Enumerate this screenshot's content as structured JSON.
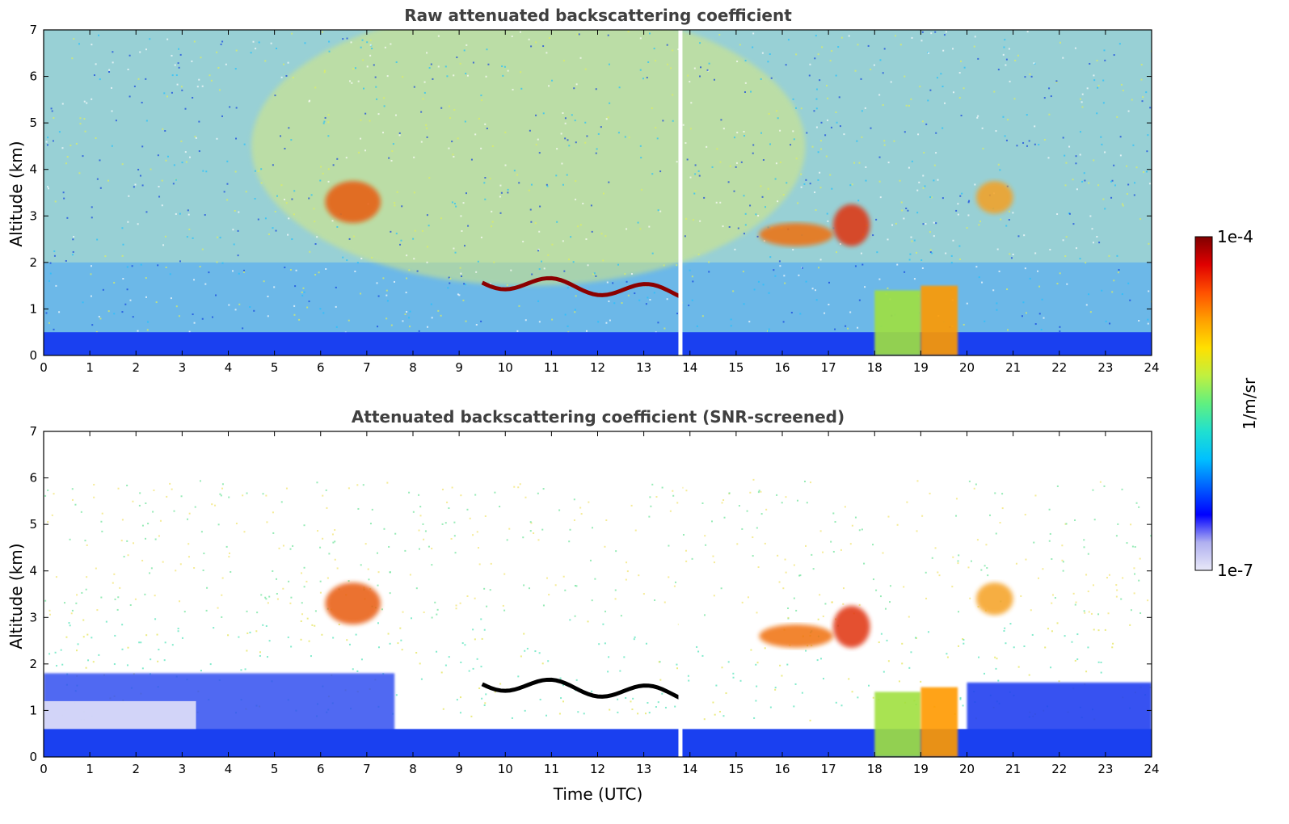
{
  "chart_data": [
    {
      "type": "heatmap",
      "title": "Raw attenuated backscattering coefficient",
      "xlabel": "",
      "ylabel": "Altitude (km)",
      "xlim": [
        0,
        24
      ],
      "ylim": [
        0,
        7
      ],
      "xticks": [
        "0",
        "1",
        "2",
        "3",
        "4",
        "5",
        "6",
        "7",
        "8",
        "9",
        "10",
        "11",
        "12",
        "13",
        "14",
        "15",
        "16",
        "17",
        "18",
        "19",
        "20",
        "21",
        "22",
        "23",
        "24"
      ],
      "yticks": [
        "0",
        "1",
        "2",
        "3",
        "4",
        "5",
        "6",
        "7"
      ],
      "background": "noisy",
      "features": [
        {
          "name": "boundary layer",
          "kind": "layer",
          "t0": 0,
          "t1": 24,
          "top_km": 0.5,
          "color": "#1a40f0"
        },
        {
          "name": "mid cloud",
          "kind": "blob",
          "t": 6.7,
          "alt": 3.3,
          "dt": 0.6,
          "dalt": 0.9,
          "color": "#e85a10"
        },
        {
          "name": "cloud layer",
          "kind": "line",
          "t0": 9.5,
          "t1": 13.8,
          "alt": 1.6,
          "color": "#8b0000"
        },
        {
          "name": "cloud",
          "kind": "blob",
          "t": 16.3,
          "alt": 2.6,
          "dt": 0.8,
          "dalt": 0.5,
          "color": "#f07010"
        },
        {
          "name": "cloud",
          "kind": "blob",
          "t": 17.5,
          "alt": 2.8,
          "dt": 0.4,
          "dalt": 0.9,
          "color": "#e03010"
        },
        {
          "name": "precipitation",
          "kind": "column",
          "t0": 18.0,
          "t1": 19.0,
          "top_km": 1.4,
          "color": "#a0e040"
        },
        {
          "name": "precipitation",
          "kind": "column",
          "t0": 19.0,
          "t1": 19.8,
          "top_km": 1.5,
          "color": "#ff9a00"
        },
        {
          "name": "high cloud",
          "kind": "blob",
          "t": 20.6,
          "alt": 3.4,
          "dt": 0.4,
          "dalt": 0.7,
          "color": "#f5a020"
        }
      ]
    },
    {
      "type": "heatmap",
      "title": "Attenuated backscattering coefficient (SNR-screened)",
      "xlabel": "Time (UTC)",
      "ylabel": "Altitude (km)",
      "xlim": [
        0,
        24
      ],
      "ylim": [
        0,
        7
      ],
      "xticks": [
        "0",
        "1",
        "2",
        "3",
        "4",
        "5",
        "6",
        "7",
        "8",
        "9",
        "10",
        "11",
        "12",
        "13",
        "14",
        "15",
        "16",
        "17",
        "18",
        "19",
        "20",
        "21",
        "22",
        "23",
        "24"
      ],
      "yticks": [
        "0",
        "1",
        "2",
        "3",
        "4",
        "5",
        "6",
        "7"
      ],
      "background": "screened",
      "features": [
        {
          "name": "boundary layer",
          "kind": "layer",
          "t0": 0,
          "t1": 24,
          "top_km": 0.6,
          "color": "#1a40f0"
        },
        {
          "name": "mid cloud",
          "kind": "blob",
          "t": 6.7,
          "alt": 3.3,
          "dt": 0.6,
          "dalt": 0.9,
          "color": "#e85a10"
        },
        {
          "name": "cloud layer",
          "kind": "line",
          "t0": 9.5,
          "t1": 13.8,
          "alt": 1.6,
          "color": "#000000"
        },
        {
          "name": "cloud",
          "kind": "blob",
          "t": 16.3,
          "alt": 2.6,
          "dt": 0.8,
          "dalt": 0.5,
          "color": "#f07010"
        },
        {
          "name": "cloud",
          "kind": "blob",
          "t": 17.5,
          "alt": 2.8,
          "dt": 0.4,
          "dalt": 0.9,
          "color": "#e03010"
        },
        {
          "name": "precipitation",
          "kind": "column",
          "t0": 18.0,
          "t1": 19.0,
          "top_km": 1.4,
          "color": "#a0e040"
        },
        {
          "name": "precipitation",
          "kind": "column",
          "t0": 19.0,
          "t1": 19.8,
          "top_km": 1.5,
          "color": "#ff9a00"
        },
        {
          "name": "high cloud",
          "kind": "blob",
          "t": 20.6,
          "alt": 3.4,
          "dt": 0.4,
          "dalt": 0.7,
          "color": "#f5a020"
        }
      ]
    }
  ],
  "colorbar": {
    "label": "1/m/sr",
    "max_label": "1e-4",
    "min_label": "1e-7",
    "colors": [
      "#e8e8f8",
      "#b0b0f0",
      "#0000ff",
      "#0060ff",
      "#00c0ff",
      "#20e0d0",
      "#60f080",
      "#c0f040",
      "#ffe000",
      "#ffa000",
      "#ff5000",
      "#e00000",
      "#800000"
    ]
  }
}
